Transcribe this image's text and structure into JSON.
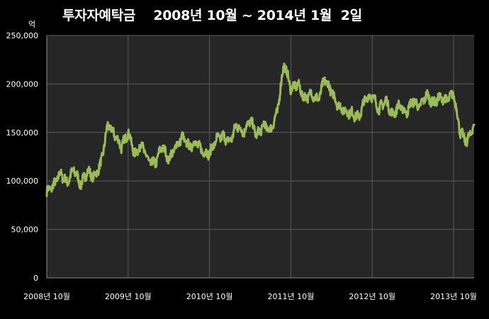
{
  "chart_data": {
    "type": "line",
    "title": "투자자예탁금    2008년 10월 ~ 2014년 1월  2일",
    "ylabel": "억",
    "xlabel": "",
    "ylim": [
      0,
      250000
    ],
    "y_ticks": [
      "0",
      "50,000",
      "100,000",
      "150,000",
      "200,000",
      "250,000"
    ],
    "x_ticks": [
      "2008년 10월",
      "2009년 10월",
      "2010년 10월",
      "2011년 10월",
      "2012년 10월",
      "2013년 10월"
    ],
    "grid": true,
    "colors": {
      "line": "#9bbb59",
      "plot_bg": "#262626",
      "grid": "#5a5a5a",
      "axis": "#8c8c8c"
    },
    "series": [
      {
        "x": [
          "2008-10",
          "2008-11",
          "2008-12",
          "2009-01",
          "2009-02",
          "2009-03",
          "2009-04",
          "2009-05",
          "2009-06",
          "2009-07",
          "2009-08",
          "2009-09",
          "2009-10",
          "2009-11",
          "2009-12",
          "2010-01",
          "2010-02",
          "2010-03",
          "2010-04",
          "2010-05",
          "2010-06",
          "2010-07",
          "2010-08",
          "2010-09",
          "2010-10",
          "2010-11",
          "2010-12",
          "2011-01",
          "2011-02",
          "2011-03",
          "2011-04",
          "2011-05",
          "2011-06",
          "2011-07",
          "2011-08",
          "2011-09",
          "2011-10",
          "2011-11",
          "2011-12",
          "2012-01",
          "2012-02",
          "2012-03",
          "2012-04",
          "2012-05",
          "2012-06",
          "2012-07",
          "2012-08",
          "2012-09",
          "2012-10",
          "2012-11",
          "2012-12",
          "2013-01",
          "2013-02",
          "2013-03",
          "2013-04",
          "2013-05",
          "2013-06",
          "2013-07",
          "2013-08",
          "2013-09",
          "2013-10",
          "2013-11",
          "2013-12",
          "2014-01"
        ],
        "values": [
          89000,
          95000,
          108000,
          98000,
          112000,
          96000,
          110000,
          104000,
          118000,
          158000,
          148000,
          135000,
          150000,
          127000,
          138000,
          120000,
          118000,
          136000,
          122000,
          135000,
          145000,
          135000,
          140000,
          130000,
          128000,
          143000,
          146000,
          140000,
          158000,
          150000,
          163000,
          147000,
          158000,
          152000,
          171000,
          222000,
          195000,
          200000,
          185000,
          190000,
          183000,
          205000,
          192000,
          178000,
          172000,
          170000,
          165000,
          185000,
          188000,
          174000,
          183000,
          168000,
          178000,
          170000,
          183000,
          176000,
          189000,
          180000,
          186000,
          183000,
          190000,
          150000,
          140000,
          158000
        ]
      }
    ]
  }
}
